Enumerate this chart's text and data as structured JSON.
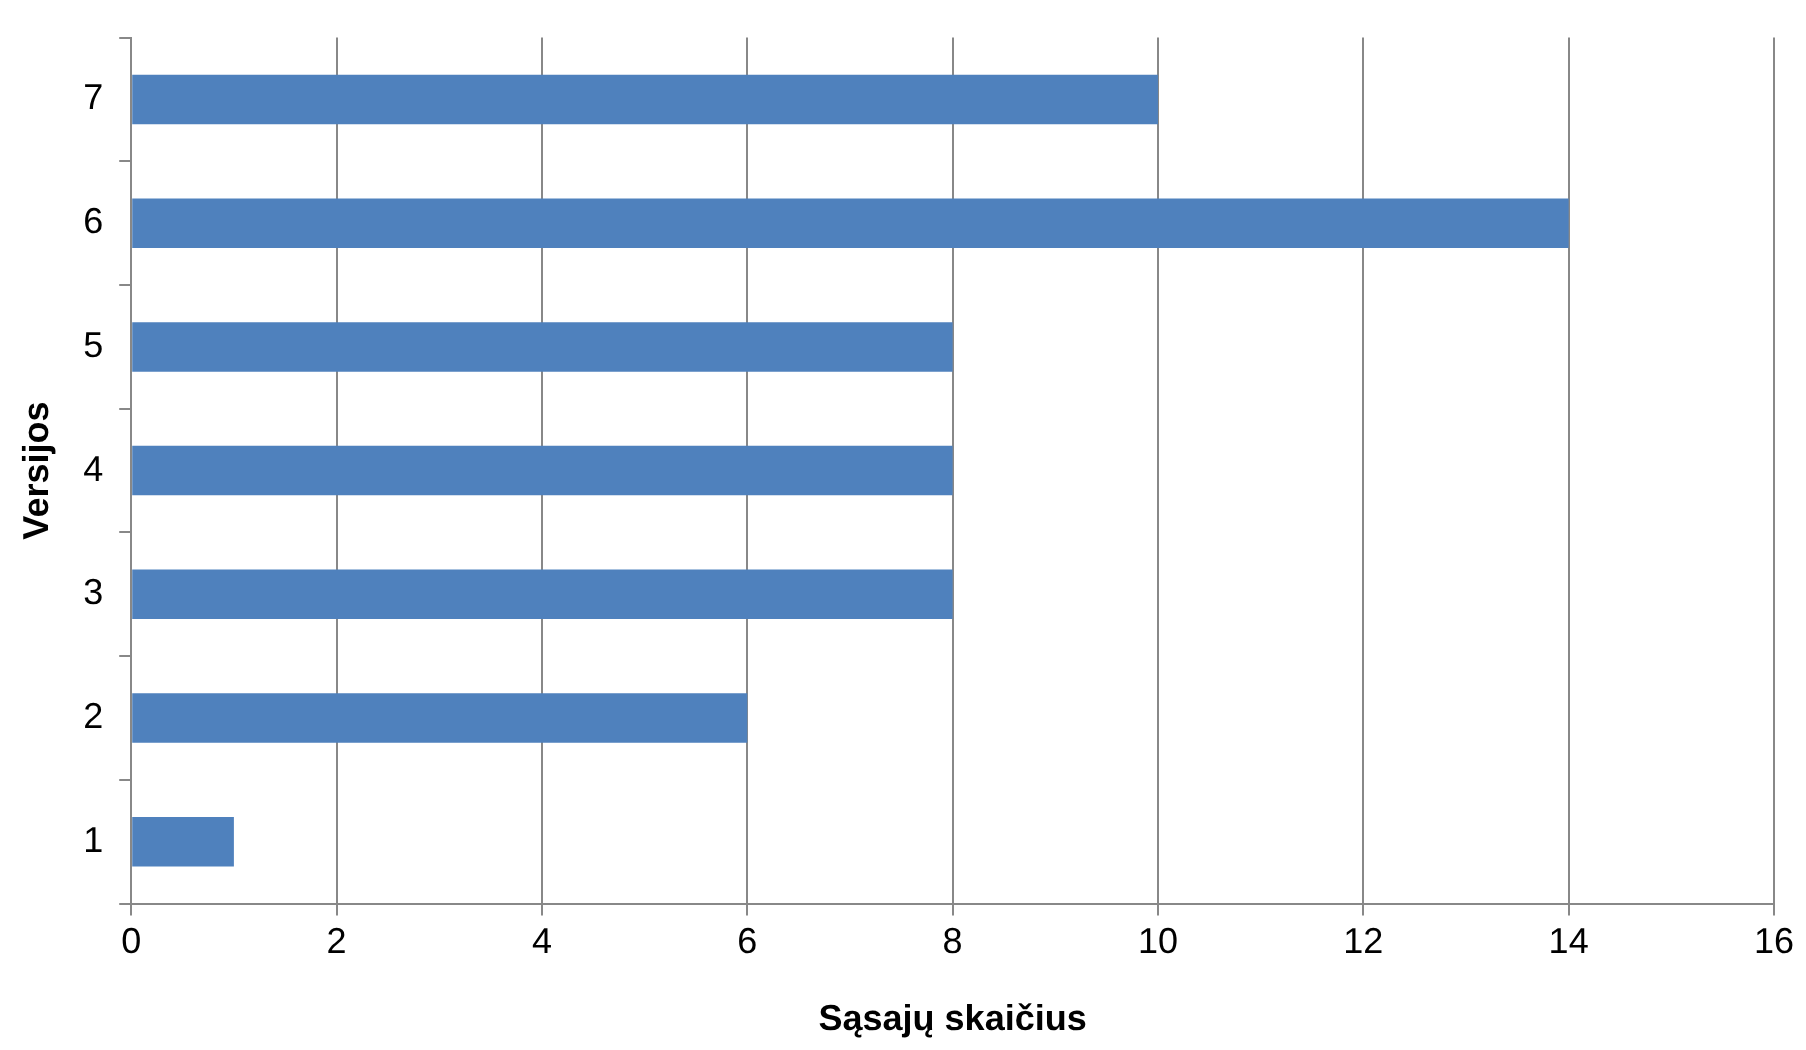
{
  "chart_data": {
    "type": "bar",
    "orientation": "horizontal",
    "xlabel": "Sąsajų skaičius",
    "ylabel": "Versijos",
    "categories": [
      "7",
      "6",
      "5",
      "4",
      "3",
      "2",
      "1"
    ],
    "series": [
      {
        "color": "#4f81bd",
        "values": [
          10,
          14,
          8,
          8,
          8,
          6,
          1
        ]
      }
    ],
    "xlim": [
      0,
      16
    ],
    "xticks": [
      0,
      2,
      4,
      6,
      8,
      10,
      12,
      14,
      16
    ],
    "grid": "x",
    "legend": false
  }
}
